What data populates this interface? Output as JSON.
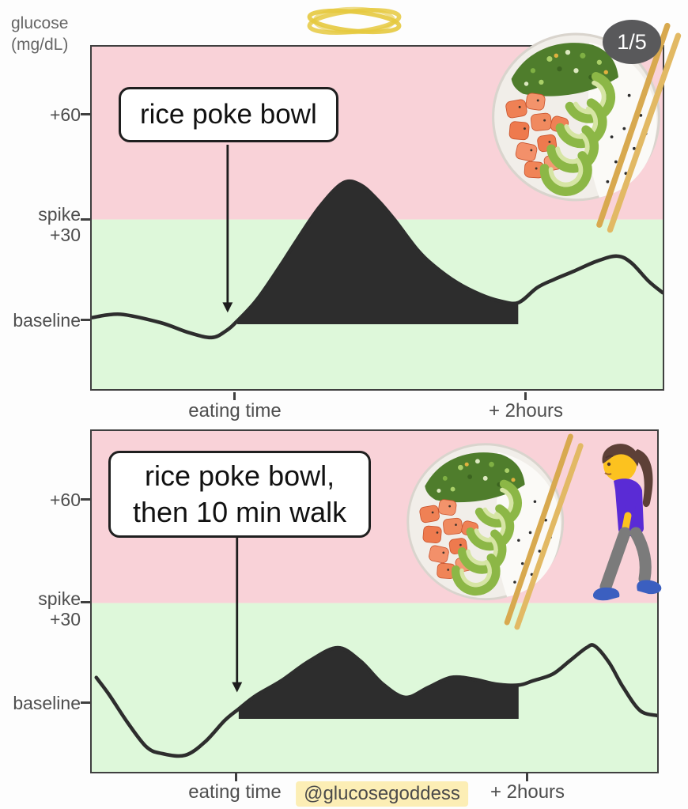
{
  "page": {
    "y_axis_title": "glucose\n(mg/dL)",
    "badge_label": "1/5",
    "watermark": "@glucosegoddess"
  },
  "icons": {
    "doodle": "yellow-scribble-loops",
    "meal_top": "salmon-avocado-rice-poke-bowl-with-chopsticks",
    "meal_bottom": "salmon-avocado-rice-poke-bowl-with-chopsticks",
    "walker": "woman-walking-emoji"
  },
  "colors": {
    "above_spike_bg": "#f9d2d8",
    "below_spike_bg": "#def8da",
    "curve": "#2d2d2d",
    "chart_border": "#3f3f3f",
    "axis_text": "#4e4e4e",
    "badge_bg": "#59595b",
    "badge_text": "#ffffff",
    "watermark_bg": "#fceeb5",
    "doodle_yellow": "#e6c93f"
  },
  "chart_data": [
    {
      "id": "top",
      "type": "area",
      "title": "rice poke bowl",
      "units": "mg/dL relative to baseline",
      "ylim": [
        -21,
        82
      ],
      "x_axis": {
        "labels": [
          "eating time",
          "+ 2hours"
        ],
        "label_positions_pct": [
          25.2,
          75.9
        ]
      },
      "y_axis": {
        "tick_labels": [
          "+60",
          "spike",
          "+30",
          "baseline"
        ],
        "tick_values": [
          60,
          30,
          30,
          0
        ],
        "spike_value": 30,
        "baseline_value": 0
      },
      "series": [
        [
          0,
          0.5
        ],
        [
          5,
          1.5
        ],
        [
          12,
          -1
        ],
        [
          17,
          -4
        ],
        [
          21,
          -5.5
        ],
        [
          23.5,
          -3.5
        ],
        [
          25.5,
          -0.5
        ],
        [
          29,
          6
        ],
        [
          33,
          16
        ],
        [
          36,
          24
        ],
        [
          40,
          34
        ],
        [
          44,
          41
        ],
        [
          47,
          40.5
        ],
        [
          50,
          36
        ],
        [
          53,
          30
        ],
        [
          57,
          21
        ],
        [
          60,
          16
        ],
        [
          64,
          11
        ],
        [
          68,
          7.5
        ],
        [
          71.5,
          5.5
        ],
        [
          74.7,
          5
        ],
        [
          78,
          9.5
        ],
        [
          81,
          12
        ],
        [
          84.5,
          14.5
        ],
        [
          88.5,
          17.5
        ],
        [
          92,
          19
        ],
        [
          94.5,
          17
        ],
        [
          97.5,
          11.5
        ],
        [
          100,
          8
        ]
      ],
      "fill_under_curve": {
        "start_pct": 25.5,
        "end_pct": 74.7,
        "bottom_value": -1.5
      },
      "meal_arrow": {
        "x_pct": 23.8,
        "from_value": 52.5,
        "to_value": 2
      }
    },
    {
      "id": "bottom",
      "type": "area",
      "title": "rice poke bowl,\nthen 10 min walk",
      "units": "mg/dL relative to baseline",
      "ylim": [
        -21,
        82
      ],
      "x_axis": {
        "labels": [
          "eating time",
          "+ 2hours"
        ],
        "label_positions_pct": [
          25.4,
          76.9
        ]
      },
      "y_axis": {
        "tick_labels": [
          "+60",
          "spike",
          "+30",
          "baseline"
        ],
        "tick_values": [
          60,
          30,
          30,
          0
        ],
        "spike_value": 30,
        "baseline_value": 0
      },
      "series": [
        [
          0.8,
          7.5
        ],
        [
          3,
          2.5
        ],
        [
          6.3,
          -6
        ],
        [
          9.7,
          -13.5
        ],
        [
          12.5,
          -15.5
        ],
        [
          16.5,
          -16
        ],
        [
          20,
          -12
        ],
        [
          23.5,
          -5.5
        ],
        [
          26,
          -2
        ],
        [
          29,
          2
        ],
        [
          33.5,
          6.5
        ],
        [
          38.5,
          12.5
        ],
        [
          43.5,
          16.5
        ],
        [
          47.5,
          12.5
        ],
        [
          51.5,
          5.5
        ],
        [
          55.5,
          1.5
        ],
        [
          59.5,
          4.5
        ],
        [
          63.5,
          7.5
        ],
        [
          67.5,
          7
        ],
        [
          71.5,
          5.5
        ],
        [
          75.5,
          5.2
        ],
        [
          78,
          6.5
        ],
        [
          81.5,
          8.5
        ],
        [
          84.5,
          12.5
        ],
        [
          87.5,
          16.5
        ],
        [
          89,
          17
        ],
        [
          91.5,
          12
        ],
        [
          94,
          4.5
        ],
        [
          97,
          -2.5
        ],
        [
          100,
          -4
        ]
      ],
      "fill_under_curve": {
        "start_pct": 26,
        "end_pct": 75.5,
        "bottom_value": -5
      },
      "meal_arrow": {
        "x_pct": 25.7,
        "from_value": 50,
        "to_value": 3
      }
    }
  ]
}
